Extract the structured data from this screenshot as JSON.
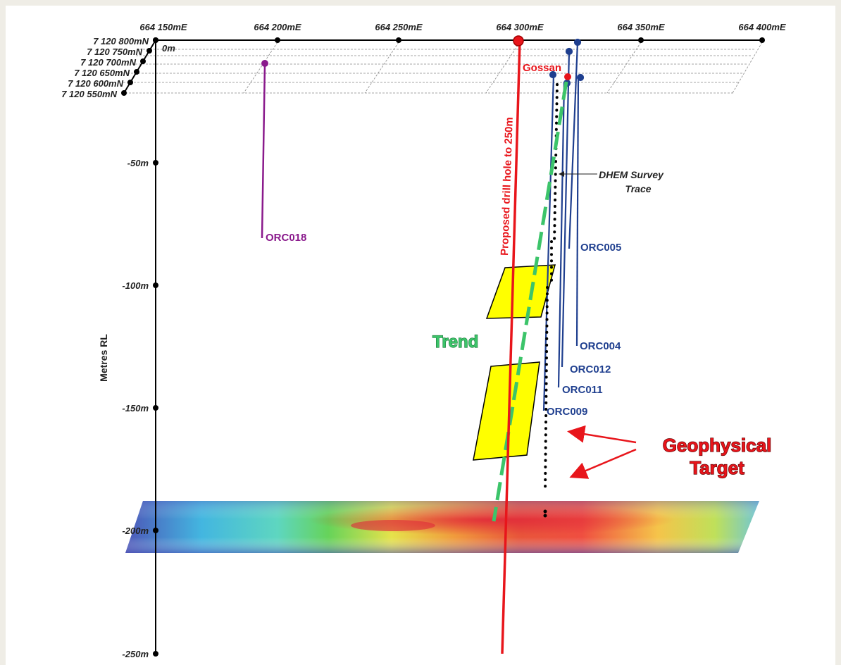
{
  "easting_labels": [
    "664 150mE",
    "664 200mE",
    "664 250mE",
    "664 300mE",
    "664 350mE",
    "664 400mE"
  ],
  "northing_labels": [
    "7 120 800mN",
    "7 120 750mN",
    "7 120 700mN",
    "7 120 650mN",
    "7 120 600mN",
    "7 120 550mN"
  ],
  "surface_label": "0m",
  "depth_labels": [
    "-50m",
    "-100m",
    "-150m",
    "-200m",
    "-250m"
  ],
  "vertical_axis_title": "Metres RL",
  "gossan_label": "Gossan",
  "proposed_hole_label": "Proposed drill hole to 250m",
  "dhem_label_line1": "DHEM Survey",
  "dhem_label_line2": "Trace",
  "trend_label": "Trend",
  "target_label_line1": "Geophysical",
  "target_label_line2": "Target",
  "holes": {
    "orc018": "ORC018",
    "orc005": "ORC005",
    "orc004": "ORC004",
    "orc012": "ORC012",
    "orc011": "ORC011",
    "orc009": "ORC009"
  },
  "colors": {
    "proposed_hole": "#e8151b",
    "trend": "#3cc46a",
    "historic_holes": "#1f3f8f",
    "orc018": "#8a1a8c",
    "target_plates": "#ffff00"
  }
}
